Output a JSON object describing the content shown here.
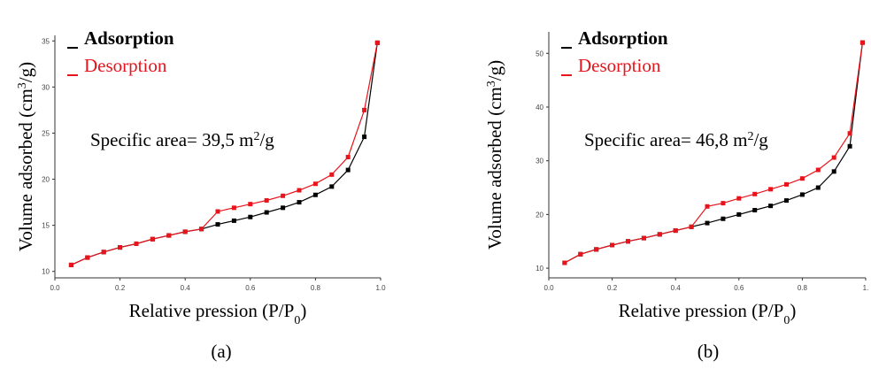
{
  "chart_data": [
    {
      "type": "line",
      "ylabel": [
        "Volume adsorbed (cm",
        "3",
        "/g)"
      ],
      "xlabel": [
        "Relative pression (P/P",
        "0",
        ")"
      ],
      "annotation": [
        "Specific area= 39,5 m",
        "2",
        "/g"
      ],
      "caption": "(a)",
      "xlim": [
        0,
        1.0
      ],
      "xticks": [
        {
          "value": 0,
          "label": "0.0"
        },
        0.2,
        0.4,
        0.6,
        0.8,
        {
          "value": 1,
          "label": "1.0"
        }
      ],
      "ylim": [
        9.3,
        35.6
      ],
      "yticks": [
        10,
        15,
        20,
        25,
        30,
        35
      ],
      "x": [
        0.05,
        0.1,
        0.15,
        0.2,
        0.25,
        0.3,
        0.35,
        0.4,
        0.45,
        0.5,
        0.55,
        0.6,
        0.65,
        0.7,
        0.75,
        0.8,
        0.85,
        0.9,
        0.95,
        0.99
      ],
      "series": [
        {
          "name": "Adsorption",
          "color": "#000000",
          "values": [
            10.7,
            11.5,
            12.1,
            12.6,
            13.0,
            13.5,
            13.9,
            14.3,
            14.6,
            15.1,
            15.5,
            15.9,
            16.4,
            16.9,
            17.5,
            18.3,
            19.2,
            21.0,
            24.6,
            34.8
          ]
        },
        {
          "name": "Desorption",
          "color": "#e8141c",
          "values": [
            10.7,
            11.5,
            12.1,
            12.6,
            13.0,
            13.5,
            13.9,
            14.3,
            14.6,
            16.5,
            16.9,
            17.3,
            17.7,
            18.2,
            18.8,
            19.5,
            20.5,
            22.4,
            27.5,
            34.8
          ]
        }
      ]
    },
    {
      "type": "line",
      "ylabel": [
        "Volume adsorbed (cm",
        "3",
        "/g)"
      ],
      "xlabel": [
        "Relative pression (P/P",
        "0",
        ")"
      ],
      "annotation": [
        "Specific area= 46,8 m",
        "2",
        "/g"
      ],
      "caption": "(b)",
      "xlim": [
        0,
        1.0
      ],
      "xticks": [
        {
          "value": 0,
          "label": "0.0"
        },
        0.2,
        0.4,
        0.6,
        0.8,
        {
          "value": 1,
          "label": "1."
        }
      ],
      "ylim": [
        8.2,
        54
      ],
      "yticks": [
        10,
        20,
        30,
        40,
        50
      ],
      "x": [
        0.05,
        0.1,
        0.15,
        0.2,
        0.25,
        0.3,
        0.35,
        0.4,
        0.45,
        0.5,
        0.55,
        0.6,
        0.65,
        0.7,
        0.75,
        0.8,
        0.85,
        0.9,
        0.95,
        0.99
      ],
      "series": [
        {
          "name": "Adsorption",
          "color": "#000000",
          "values": [
            11.0,
            12.6,
            13.5,
            14.3,
            15.0,
            15.6,
            16.3,
            17.0,
            17.7,
            18.4,
            19.2,
            20.0,
            20.8,
            21.6,
            22.6,
            23.7,
            25.0,
            28.0,
            32.7,
            52.0
          ]
        },
        {
          "name": "Desorption",
          "color": "#e8141c",
          "values": [
            11.0,
            12.6,
            13.5,
            14.3,
            15.0,
            15.6,
            16.3,
            17.0,
            17.7,
            21.5,
            22.1,
            23.0,
            23.8,
            24.7,
            25.6,
            26.7,
            28.3,
            30.6,
            35.1,
            52.0
          ]
        }
      ]
    }
  ]
}
